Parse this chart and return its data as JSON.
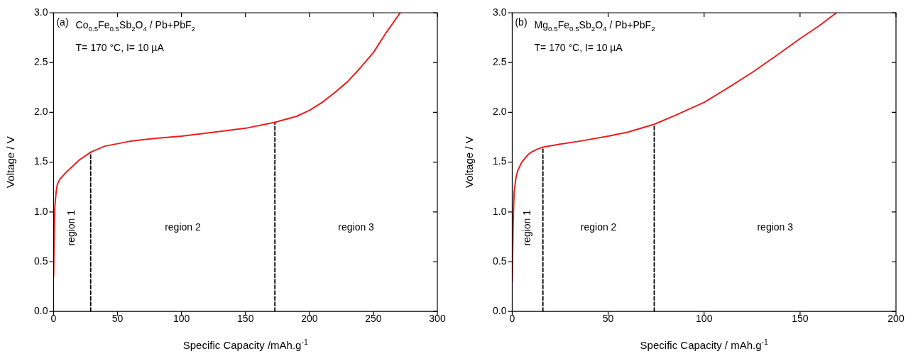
{
  "chart_data": [
    {
      "type": "line",
      "xlabel": "Specific Capacity /mAh.g$^{-1}$",
      "ylabel": "Voltage / V",
      "xlim": [
        0,
        300
      ],
      "xticks": [
        0,
        50,
        100,
        150,
        200,
        250,
        300
      ],
      "ylim": [
        0,
        3
      ],
      "yticks": [
        {
          "value": 0,
          "label": "0.0"
        },
        {
          "value": 0.5,
          "label": "0.5"
        },
        {
          "value": 1,
          "label": "1.0"
        },
        {
          "value": 1.5,
          "label": "1.5"
        },
        {
          "value": 2,
          "label": "2.0"
        },
        {
          "value": 2.5,
          "label": "2.5"
        },
        {
          "value": 3,
          "label": "3.0"
        }
      ],
      "grid": false,
      "legend": false,
      "marker": "none",
      "series": [
        {
          "color": "#ee1c1c",
          "line_style": "solid",
          "x": [
            0,
            0.5,
            1,
            2,
            3,
            5,
            10,
            15,
            20,
            29,
            40,
            60,
            80,
            100,
            125,
            150,
            173,
            190,
            200,
            210,
            220,
            230,
            240,
            250,
            260,
            271
          ],
          "values": [
            0.35,
            0.8,
            1.05,
            1.2,
            1.28,
            1.33,
            1.4,
            1.46,
            1.52,
            1.6,
            1.66,
            1.71,
            1.74,
            1.76,
            1.8,
            1.84,
            1.9,
            1.96,
            2.02,
            2.1,
            2.2,
            2.31,
            2.45,
            2.6,
            2.8,
            3.0
          ]
        },
        {
          "color": "#000000",
          "line_style": "dashed",
          "x": [
            29,
            29
          ],
          "values": [
            0,
            1.6
          ]
        },
        {
          "color": "#000000",
          "line_style": "dashed",
          "x": [
            173,
            173
          ],
          "values": [
            0,
            1.9
          ]
        }
      ],
      "annotations": [
        "(a)",
        "Co$_{0.5}$Fe$_{0.5}$Sb$_{2}$O$_{4}$ / Pb+PbF$_{2}$",
        "T= 170 °C, I= 10 µA",
        "region 1",
        "region 2",
        "region 3"
      ]
    },
    {
      "type": "line",
      "xlabel": "Specific Capacity / mAh.g$^{-1}$",
      "ylabel": "Voltage / V",
      "xlim": [
        0,
        200
      ],
      "xticks": [
        0,
        50,
        100,
        150,
        200
      ],
      "ylim": [
        0,
        3
      ],
      "yticks": [
        {
          "value": 0,
          "label": "0.0"
        },
        {
          "value": 0.5,
          "label": "0.5"
        },
        {
          "value": 1,
          "label": "1.0"
        },
        {
          "value": 1.5,
          "label": "1.5"
        },
        {
          "value": 2,
          "label": "2.0"
        },
        {
          "value": 2.5,
          "label": "2.5"
        },
        {
          "value": 3,
          "label": "3.0"
        }
      ],
      "grid": false,
      "legend": false,
      "marker": "none",
      "series": [
        {
          "color": "#ee1c1c",
          "line_style": "solid",
          "x": [
            0,
            0.5,
            1,
            2,
            3,
            5,
            8,
            10,
            13,
            16,
            25,
            35,
            50,
            60,
            74,
            85,
            100,
            112,
            125,
            137,
            150,
            160,
            169
          ],
          "values": [
            0.3,
            0.9,
            1.2,
            1.35,
            1.42,
            1.5,
            1.57,
            1.6,
            1.63,
            1.65,
            1.68,
            1.71,
            1.76,
            1.8,
            1.88,
            1.97,
            2.1,
            2.24,
            2.4,
            2.56,
            2.74,
            2.87,
            3.0
          ]
        },
        {
          "color": "#000000",
          "line_style": "dashed",
          "x": [
            16,
            16
          ],
          "values": [
            0,
            1.65
          ]
        },
        {
          "color": "#000000",
          "line_style": "dashed",
          "x": [
            74,
            74
          ],
          "values": [
            0,
            1.88
          ]
        }
      ],
      "annotations": [
        "(b)",
        "Mg$_{0.5}$Fe$_{0.5}$Sb$_{2}$O$_{4}$ / Pb+PbF$_{2}$",
        "T= 170 °C, I= 10 µA",
        "region 1",
        "region 2",
        "region 3"
      ]
    }
  ]
}
